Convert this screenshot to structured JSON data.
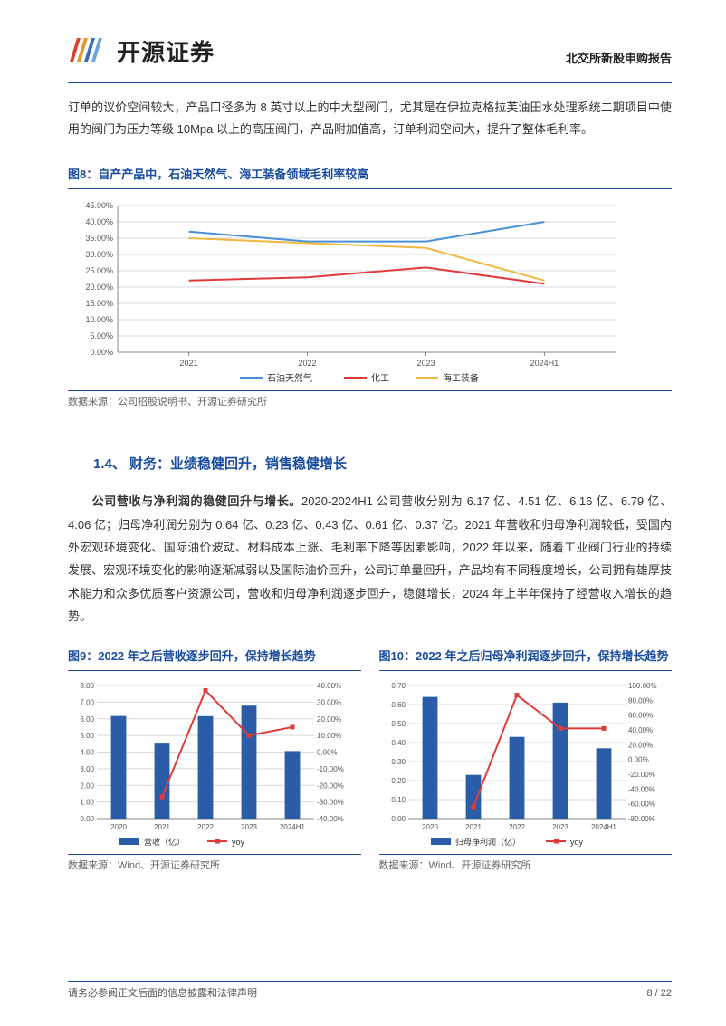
{
  "header": {
    "logo_text": "开源证券",
    "right_label": "北交所新股申购报告"
  },
  "intro_paragraph": "订单的议价空间较大，产品口径多为 8 英寸以上的中大型阀门，尤其是在伊拉克格拉芙油田水处理系统二期项目中使用的阀门为压力等级 10Mpa 以上的高压阀门，产品附加值高，订单利润空间大，提升了整体毛利率。",
  "fig8": {
    "title": "图8：自产产品中，石油天然气、海工装备领域毛利率较高",
    "type": "line",
    "categories": [
      "2021",
      "2022",
      "2023",
      "2024H1"
    ],
    "y_ticks": [
      "0.00%",
      "5.00%",
      "10.00%",
      "15.00%",
      "20.00%",
      "25.00%",
      "30.00%",
      "35.00%",
      "40.00%",
      "45.00%"
    ],
    "ylim": [
      0,
      45
    ],
    "series": [
      {
        "name": "石油天然气",
        "color": "#4a90d9",
        "values": [
          37,
          34,
          34,
          40
        ]
      },
      {
        "name": "化工",
        "color": "#e03b3b",
        "values": [
          22,
          23,
          26,
          21
        ]
      },
      {
        "name": "海工装备",
        "color": "#f0b840",
        "values": [
          35,
          33.5,
          32,
          22
        ]
      }
    ],
    "grid_color": "#d9d9d9",
    "axis_color": "#888888",
    "tick_fontsize": 9,
    "legend_fontsize": 10,
    "line_width": 2,
    "source": "数据来源：公司招股说明书、开源证券研究所"
  },
  "section_1_4": {
    "heading": "1.4、 财务：业绩稳健回升，销售稳健增长",
    "para_bold": "公司营收与净利润的稳健回升与增长。",
    "para_body": "2020-2024H1 公司营收分别为 6.17 亿、4.51 亿、6.16 亿、6.79 亿、4.06 亿；归母净利润分别为 0.64 亿、0.23 亿、0.43 亿、0.61 亿、0.37 亿。2021 年营收和归母净利润较低，受国内外宏观环境变化、国际油价波动、材料成本上涨、毛利率下降等因素影响，2022 年以来，随着工业阀门行业的持续发展、宏观环境变化的影响逐渐减弱以及国际油价回升，公司订单量回升，产品均有不同程度增长，公司拥有雄厚技术能力和众多优质客户资源公司，营收和归母净利润逐步回升，稳健增长，2024 年上半年保持了经营收入增长的趋势。"
  },
  "fig9": {
    "title": "图9：2022 年之后营收逐步回升，保持增长趋势",
    "type": "bar-line",
    "categories": [
      "2020",
      "2021",
      "2022",
      "2023",
      "2024H1"
    ],
    "y_left_ticks": [
      "0.00",
      "1.00",
      "2.00",
      "3.00",
      "4.00",
      "5.00",
      "6.00",
      "7.00",
      "8.00"
    ],
    "y_left_lim": [
      0,
      8
    ],
    "y_right_ticks": [
      "-40.00%",
      "-30.00%",
      "-20.00%",
      "-10.00%",
      "0.00%",
      "10.00%",
      "20.00%",
      "30.00%",
      "40.00%"
    ],
    "y_right_lim": [
      -40,
      40
    ],
    "bars": {
      "name": "营收（亿）",
      "color": "#2a5ca8",
      "values": [
        6.17,
        4.51,
        6.16,
        6.79,
        4.06
      ]
    },
    "line": {
      "name": "yoy",
      "color": "#e03b3b",
      "values": [
        null,
        -27,
        37,
        10,
        15
      ]
    },
    "grid_color": "#d9d9d9",
    "tick_fontsize": 8,
    "bar_width": 0.35,
    "line_width": 2,
    "source": "数据来源：Wind、开源证券研究所"
  },
  "fig10": {
    "title": "图10：2022 年之后归母净利润逐步回升，保持增长趋势",
    "type": "bar-line",
    "categories": [
      "2020",
      "2021",
      "2022",
      "2023",
      "2024H1"
    ],
    "y_left_ticks": [
      "0.00",
      "0.10",
      "0.20",
      "0.30",
      "0.40",
      "0.50",
      "0.60",
      "0.70"
    ],
    "y_left_lim": [
      0,
      0.7
    ],
    "y_right_ticks": [
      "-80.00%",
      "-60.00%",
      "-40.00%",
      "-20.00%",
      "0.00%",
      "20.00%",
      "40.00%",
      "60.00%",
      "80.00%",
      "100.00%"
    ],
    "y_right_lim": [
      -80,
      100
    ],
    "bars": {
      "name": "归母净利润（亿）",
      "color": "#2a5ca8",
      "values": [
        0.64,
        0.23,
        0.43,
        0.61,
        0.37
      ]
    },
    "line": {
      "name": "yoy",
      "color": "#e03b3b",
      "values": [
        null,
        -64,
        87,
        42,
        42
      ]
    },
    "grid_color": "#d9d9d9",
    "tick_fontsize": 8,
    "bar_width": 0.35,
    "line_width": 2,
    "source": "数据来源：Wind、开源证券研究所"
  },
  "footer": {
    "left": "请务必参阅正文后面的信息披露和法律声明",
    "right": "8 / 22"
  },
  "theme": {
    "brand_blue": "#1a4ca0",
    "text_color": "#333333"
  }
}
